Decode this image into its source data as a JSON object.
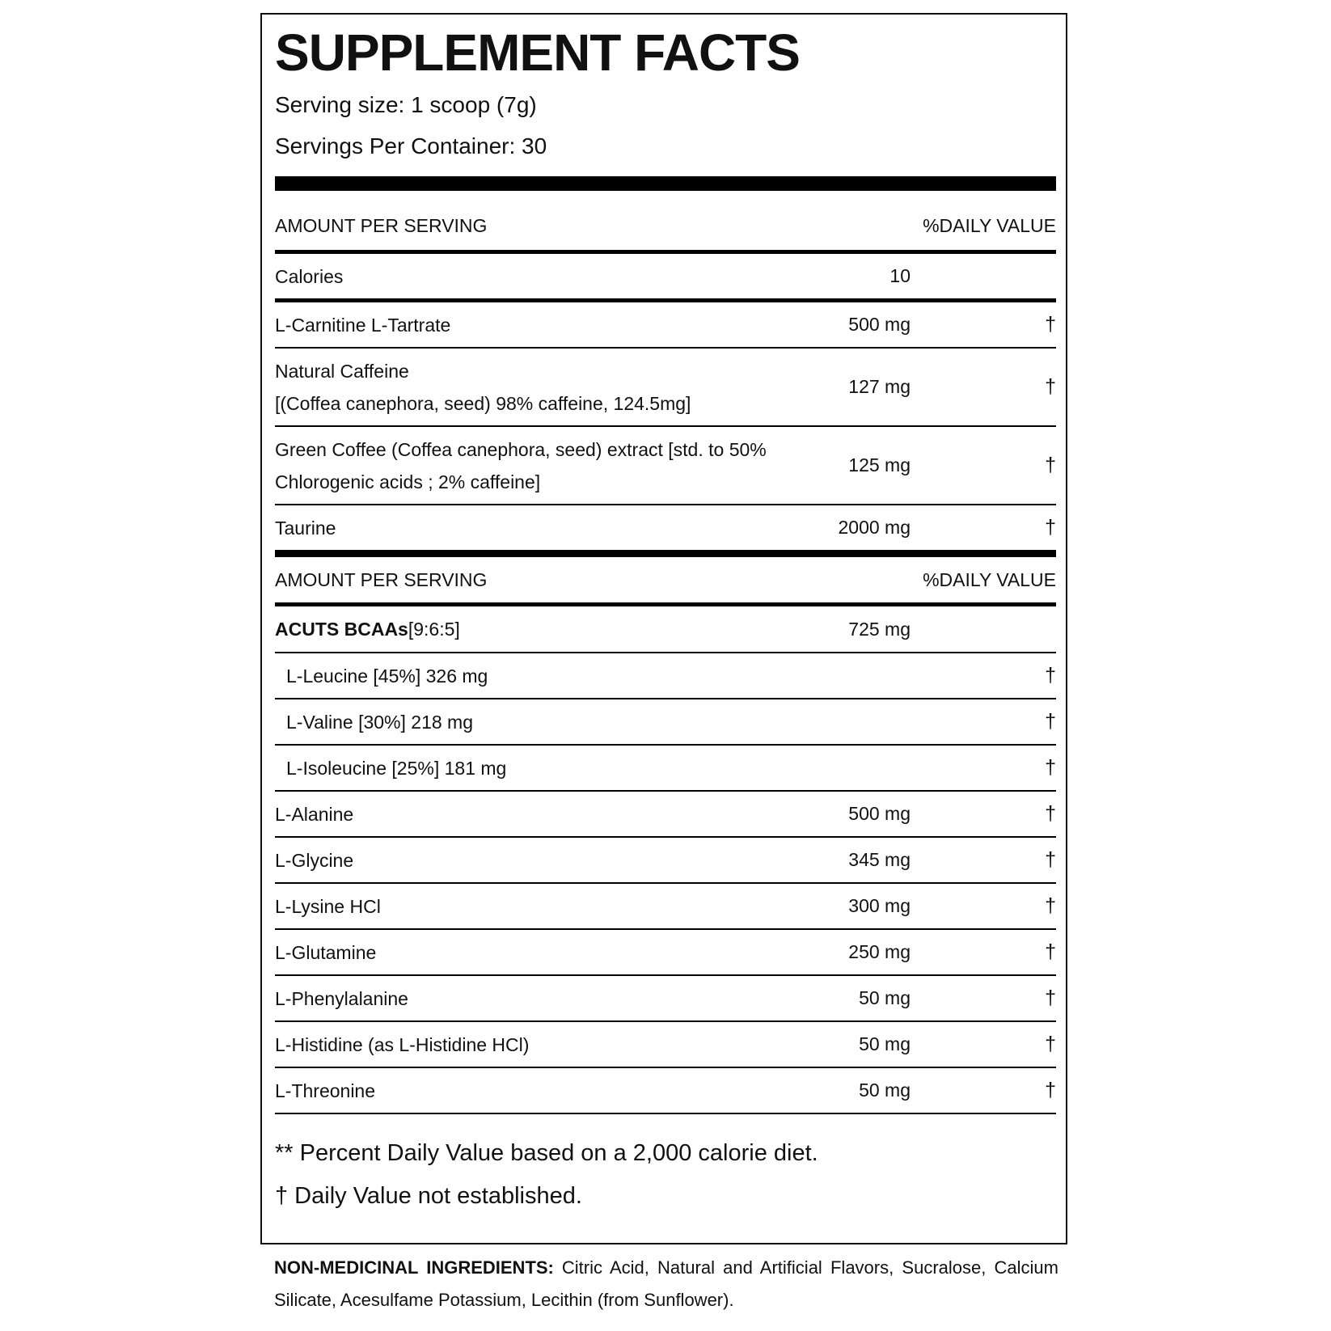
{
  "title": "SUPPLEMENT FACTS",
  "serving_size": "Serving size: 1 scoop (7g)",
  "servings_per_container": "Servings Per Container: 30",
  "header": {
    "left": "AMOUNT PER SERVING",
    "right": "%DAILY VALUE"
  },
  "calories": {
    "name": "Calories",
    "amount": "10"
  },
  "section1": [
    {
      "name": "L-Carnitine L-Tartrate",
      "amount": "500 mg",
      "dv": "†"
    },
    {
      "name": "Natural Caffeine",
      "name2": "[(Coffea canephora, seed) 98% caffeine, 124.5mg]",
      "amount": "127 mg",
      "dv": "†"
    },
    {
      "name": "Green Coffee (Coffea canephora, seed) extract [std. to 50%",
      "name2": "Chlorogenic acids ; 2% caffeine]",
      "amount": "125 mg",
      "dv": "†"
    },
    {
      "name": "Taurine",
      "amount": "2000 mg",
      "dv": "†"
    }
  ],
  "header2": {
    "left": "AMOUNT PER SERVING",
    "right": "%DAILY VALUE"
  },
  "bcaa": {
    "name_bold": "ACUTS BCAAs",
    "name_rest": "[9:6:5]",
    "amount": "725 mg"
  },
  "bcaa_items": [
    {
      "name": "L-Leucine [45%] 326 mg",
      "dv": "†"
    },
    {
      "name": "L-Valine [30%] 218 mg",
      "dv": "†"
    },
    {
      "name": "L-Isoleucine [25%] 181 mg",
      "dv": "†"
    }
  ],
  "section2": [
    {
      "name": "L-Alanine",
      "amount": "500 mg",
      "dv": "†"
    },
    {
      "name": "L-Glycine",
      "amount": "345 mg",
      "dv": "†"
    },
    {
      "name": "L-Lysine HCl",
      "amount": "300 mg",
      "dv": "†"
    },
    {
      "name": "L-Glutamine",
      "amount": "250 mg",
      "dv": "†"
    },
    {
      "name": "L-Phenylalanine",
      "amount": "50 mg",
      "dv": "†"
    },
    {
      "name": "L-Histidine (as L-Histidine HCl)",
      "amount": "50 mg",
      "dv": "†"
    },
    {
      "name": "L-Threonine",
      "amount": "50 mg",
      "dv": "†"
    }
  ],
  "footnotes": {
    "percent": "** Percent Daily Value based on a 2,000 calorie diet.",
    "dagger": "† Daily Value not established."
  },
  "non_medicinal": {
    "label": "NON-MEDICINAL INGREDIENTS:",
    "text": "Citric Acid, Natural and Artificial Flavors, Sucralose, Calcium Silicate, Acesulfame Potassium, Lecithin (from Sunflower)."
  }
}
